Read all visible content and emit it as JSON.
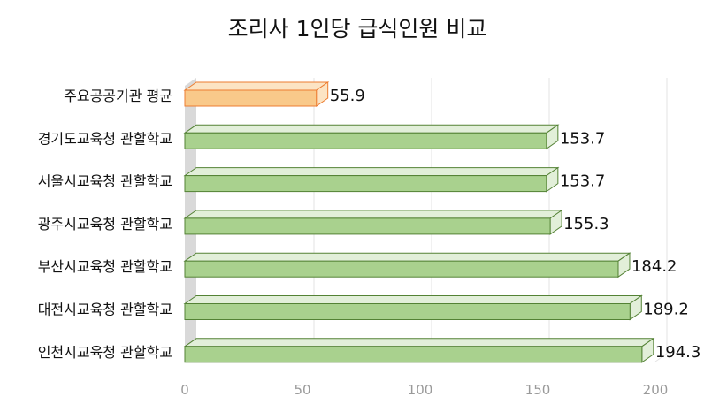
{
  "chart_data": {
    "type": "bar",
    "orientation": "horizontal",
    "title": "조리사 1인당 급식인원 비교",
    "categories": [
      "주요공공기관 평균",
      "경기도교육청 관할학교",
      "서울시교육청 관할학교",
      "광주시교육청 관할학교",
      "부산시교육청 관할학교",
      "대전시교육청 관할학교",
      "인천시교육청 관할학교"
    ],
    "values": [
      55.9,
      153.7,
      153.7,
      155.3,
      184.2,
      189.2,
      194.3
    ],
    "value_labels": [
      "55.9",
      "153.7",
      "153.7",
      "155.3",
      "184.2",
      "189.2",
      "194.3"
    ],
    "xlim": [
      0,
      220
    ],
    "x_ticks": [
      0,
      50,
      100,
      150,
      200
    ],
    "x_tick_labels": [
      "0",
      "50",
      "100",
      "150",
      "200"
    ],
    "grid": true,
    "legend": "none",
    "highlight_index": 0,
    "colors": {
      "bar_front": "#a9d18e",
      "bar_top": "#e2efd9",
      "bar_stroke": "#548235",
      "highlight_front": "#f9c98a",
      "highlight_top": "#fce4c4",
      "highlight_stroke": "#ed7d31",
      "grid": "#e3e3e3",
      "wall": "#d9d9d9"
    }
  }
}
